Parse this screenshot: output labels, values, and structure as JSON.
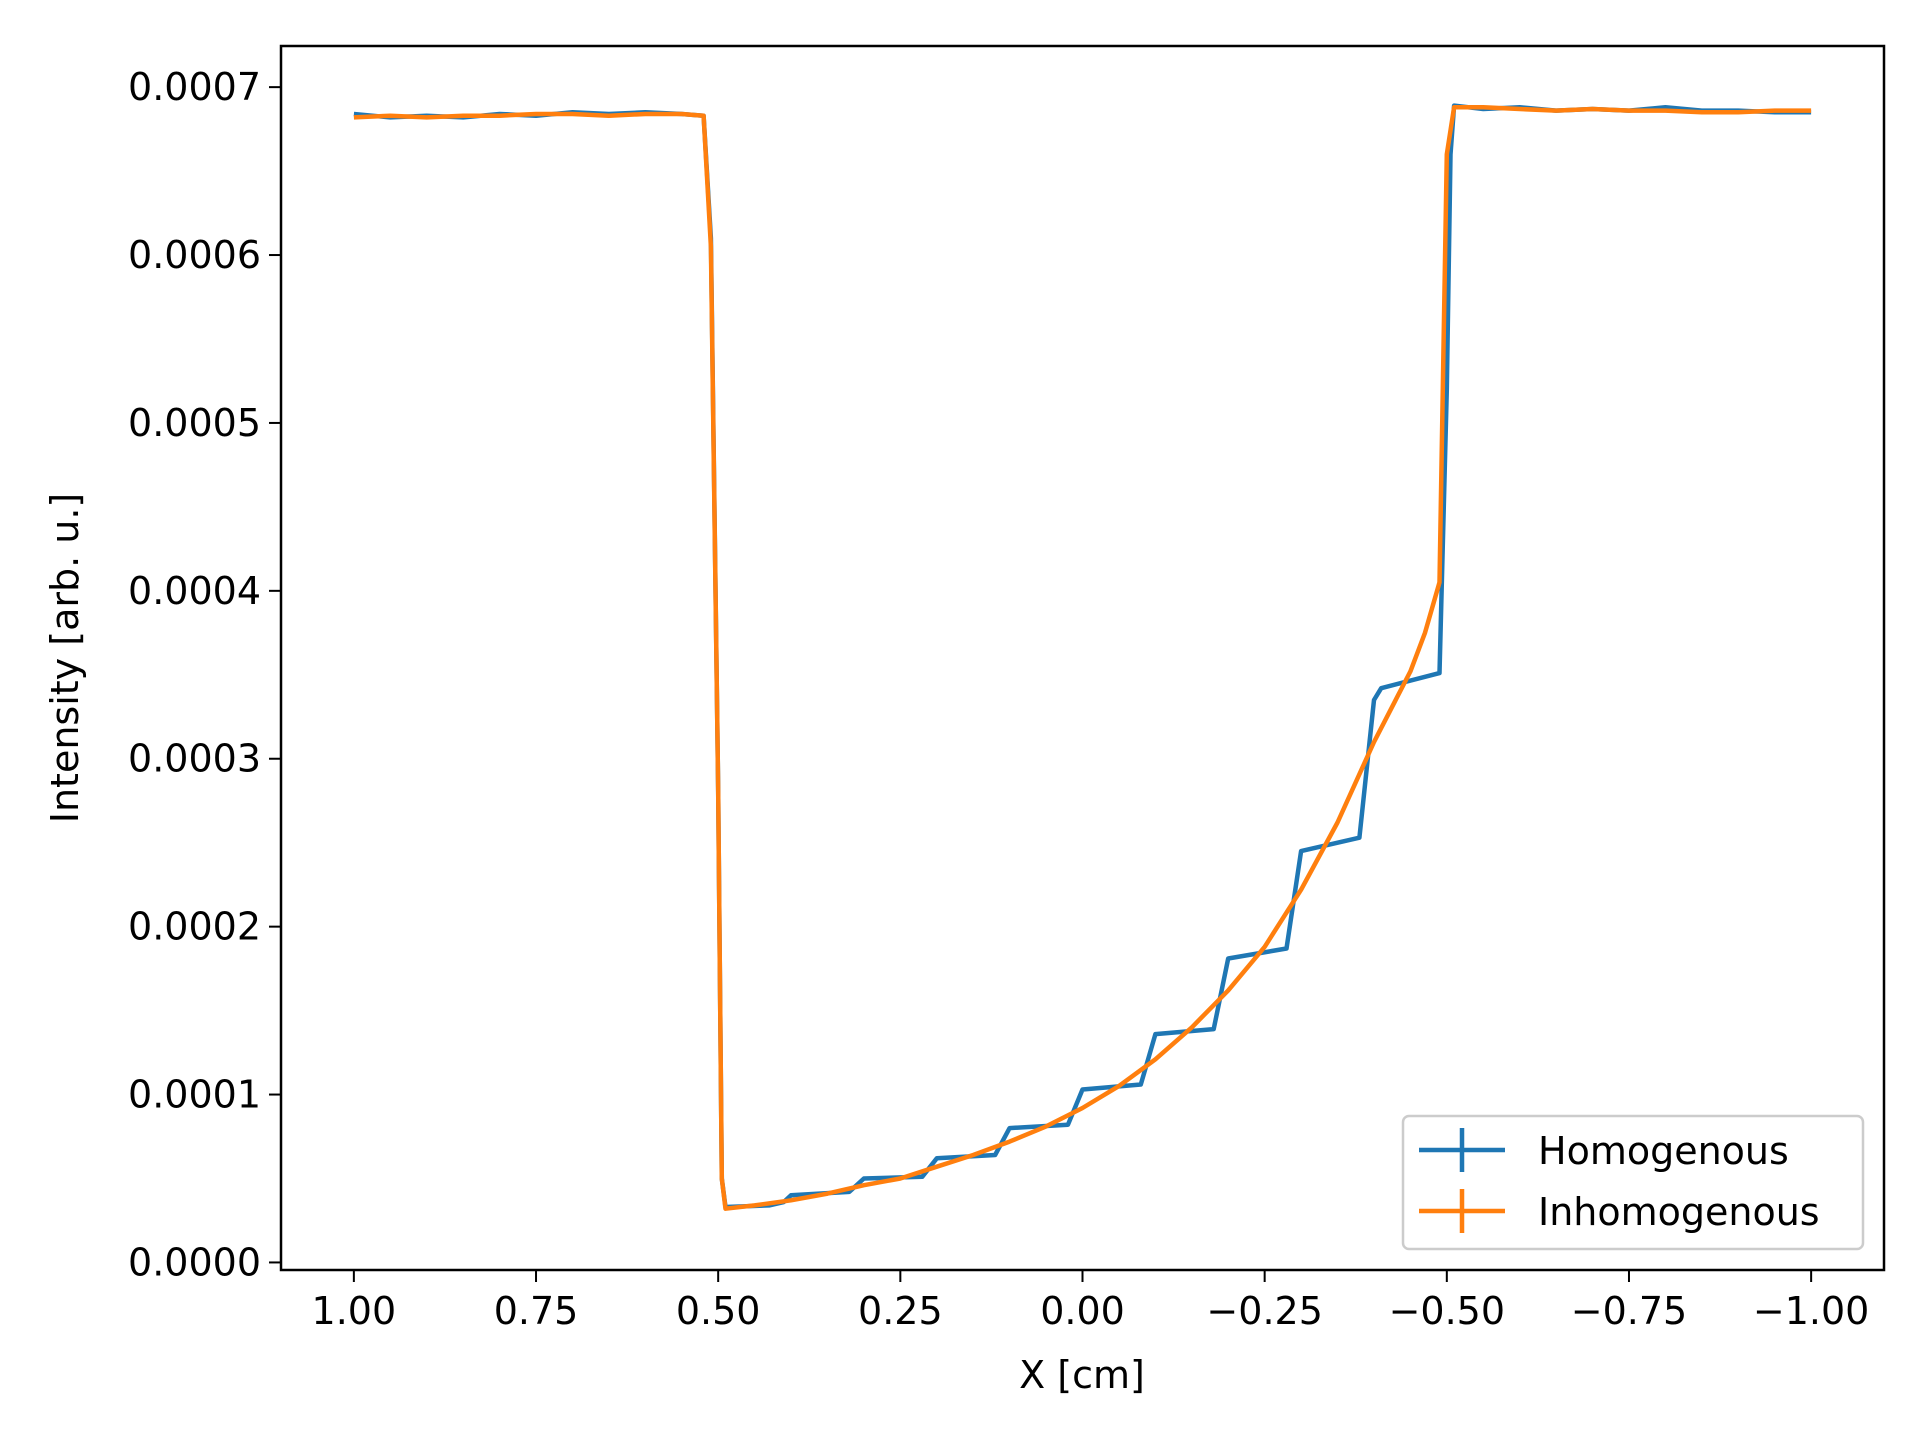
{
  "chart_data": {
    "type": "line",
    "title": "",
    "xlabel": "X [cm]",
    "ylabel": "Intensity [arb. u.]",
    "xlim": [
      1.1,
      -1.1
    ],
    "ylim": [
      -4.5e-06,
      0.0007245
    ],
    "x_inverted": true,
    "grid": false,
    "legend_placement": "lower right",
    "xticks": [
      1.0,
      0.75,
      0.5,
      0.25,
      0.0,
      -0.25,
      -0.5,
      -0.75,
      -1.0
    ],
    "xtick_labels": [
      "1.00",
      "0.75",
      "0.50",
      "0.25",
      "0.00",
      "−0.25",
      "−0.50",
      "−0.75",
      "−1.00"
    ],
    "yticks": [
      0,
      0.0001,
      0.0002,
      0.0003,
      0.0004,
      0.0005,
      0.0006,
      0.0007
    ],
    "ytick_labels": [
      "0.0000",
      "0.0001",
      "0.0002",
      "0.0003",
      "0.0004",
      "0.0005",
      "0.0006",
      "0.0007"
    ],
    "series": [
      {
        "name": "Homogenous",
        "color": "#1f77b4",
        "points": [
          [
            1.0,
            0.000684
          ],
          [
            0.95,
            0.000682
          ],
          [
            0.9,
            0.000683
          ],
          [
            0.85,
            0.000682
          ],
          [
            0.8,
            0.000684
          ],
          [
            0.75,
            0.000683
          ],
          [
            0.7,
            0.000685
          ],
          [
            0.65,
            0.000684
          ],
          [
            0.6,
            0.000685
          ],
          [
            0.55,
            0.000684
          ],
          [
            0.52,
            0.000683
          ],
          [
            0.51,
            0.00061
          ],
          [
            0.5,
            0.00028
          ],
          [
            0.495,
            5e-05
          ],
          [
            0.49,
            3.3e-05
          ],
          [
            0.43,
            3.4e-05
          ],
          [
            0.41,
            3.6e-05
          ],
          [
            0.4,
            4e-05
          ],
          [
            0.32,
            4.2e-05
          ],
          [
            0.3,
            5e-05
          ],
          [
            0.22,
            5.1e-05
          ],
          [
            0.2,
            6.2e-05
          ],
          [
            0.12,
            6.4e-05
          ],
          [
            0.1,
            8e-05
          ],
          [
            0.02,
            8.2e-05
          ],
          [
            0.0,
            0.000103
          ],
          [
            -0.08,
            0.000106
          ],
          [
            -0.1,
            0.000136
          ],
          [
            -0.18,
            0.000139
          ],
          [
            -0.2,
            0.000181
          ],
          [
            -0.28,
            0.000187
          ],
          [
            -0.3,
            0.000245
          ],
          [
            -0.38,
            0.000253
          ],
          [
            -0.4,
            0.000335
          ],
          [
            -0.41,
            0.000342
          ],
          [
            -0.49,
            0.000351
          ],
          [
            -0.5,
            0.00052
          ],
          [
            -0.505,
            0.00066
          ],
          [
            -0.51,
            0.000689
          ],
          [
            -0.55,
            0.000687
          ],
          [
            -0.6,
            0.000688
          ],
          [
            -0.65,
            0.000686
          ],
          [
            -0.7,
            0.000687
          ],
          [
            -0.75,
            0.000686
          ],
          [
            -0.8,
            0.000688
          ],
          [
            -0.85,
            0.000686
          ],
          [
            -0.9,
            0.000686
          ],
          [
            -0.95,
            0.000685
          ],
          [
            -1.0,
            0.000685
          ]
        ]
      },
      {
        "name": "Inhomogenous",
        "color": "#ff7f0e",
        "points": [
          [
            1.0,
            0.000682
          ],
          [
            0.95,
            0.000683
          ],
          [
            0.9,
            0.000682
          ],
          [
            0.85,
            0.000683
          ],
          [
            0.8,
            0.000683
          ],
          [
            0.75,
            0.000684
          ],
          [
            0.7,
            0.000684
          ],
          [
            0.65,
            0.000683
          ],
          [
            0.6,
            0.000684
          ],
          [
            0.55,
            0.000684
          ],
          [
            0.52,
            0.000683
          ],
          [
            0.51,
            0.000605
          ],
          [
            0.5,
            0.00028
          ],
          [
            0.495,
            5e-05
          ],
          [
            0.49,
            3.2e-05
          ],
          [
            0.45,
            3.4e-05
          ],
          [
            0.4,
            3.7e-05
          ],
          [
            0.35,
            4.1e-05
          ],
          [
            0.3,
            4.6e-05
          ],
          [
            0.25,
            5e-05
          ],
          [
            0.2,
            5.7e-05
          ],
          [
            0.15,
            6.4e-05
          ],
          [
            0.1,
            7.2e-05
          ],
          [
            0.05,
            8.1e-05
          ],
          [
            0.0,
            9.2e-05
          ],
          [
            -0.05,
            0.000105
          ],
          [
            -0.1,
            0.000121
          ],
          [
            -0.15,
            0.00014
          ],
          [
            -0.2,
            0.000162
          ],
          [
            -0.25,
            0.000188
          ],
          [
            -0.3,
            0.000222
          ],
          [
            -0.35,
            0.000262
          ],
          [
            -0.4,
            0.00031
          ],
          [
            -0.45,
            0.000352
          ],
          [
            -0.47,
            0.000375
          ],
          [
            -0.49,
            0.000405
          ],
          [
            -0.5,
            0.00066
          ],
          [
            -0.51,
            0.000688
          ],
          [
            -0.55,
            0.000688
          ],
          [
            -0.6,
            0.000687
          ],
          [
            -0.65,
            0.000686
          ],
          [
            -0.7,
            0.000687
          ],
          [
            -0.75,
            0.000686
          ],
          [
            -0.8,
            0.000686
          ],
          [
            -0.85,
            0.000685
          ],
          [
            -0.9,
            0.000685
          ],
          [
            -0.95,
            0.000686
          ],
          [
            -1.0,
            0.000686
          ]
        ]
      }
    ]
  }
}
